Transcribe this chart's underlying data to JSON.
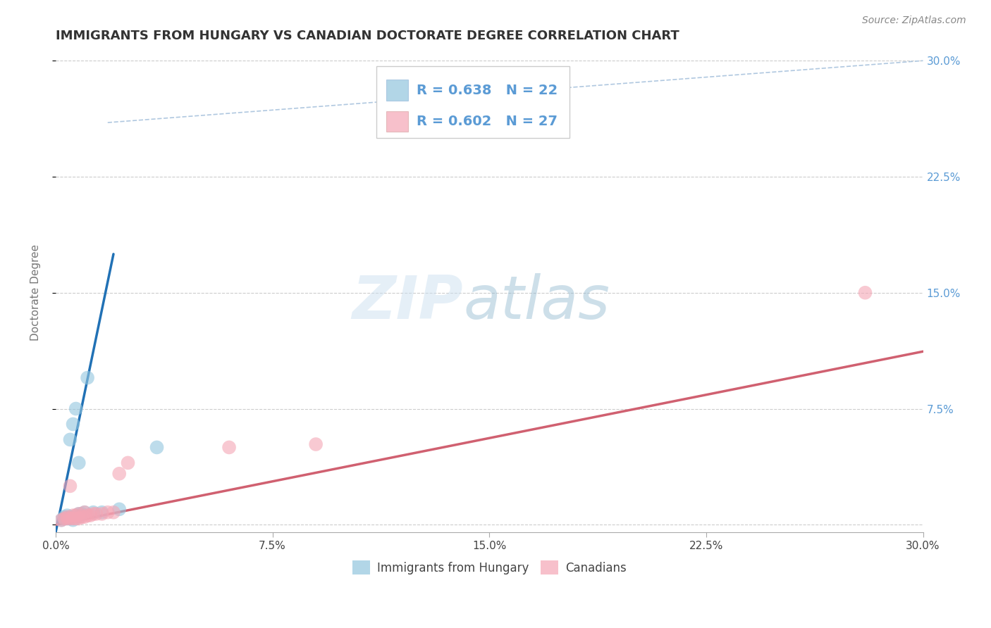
{
  "title": "IMMIGRANTS FROM HUNGARY VS CANADIAN DOCTORATE DEGREE CORRELATION CHART",
  "source": "Source: ZipAtlas.com",
  "ylabel": "Doctorate Degree",
  "xlim": [
    0.0,
    0.3
  ],
  "ylim": [
    -0.005,
    0.305
  ],
  "xticks": [
    0.0,
    0.075,
    0.15,
    0.225,
    0.3
  ],
  "yticks": [
    0.0,
    0.075,
    0.15,
    0.225,
    0.3
  ],
  "xticklabels": [
    "0.0%",
    "7.5%",
    "15.0%",
    "22.5%",
    "30.0%"
  ],
  "yticklabels": [
    "",
    "7.5%",
    "15.0%",
    "22.5%",
    "30.0%"
  ],
  "blue_scatter_x": [
    0.002,
    0.003,
    0.003,
    0.004,
    0.004,
    0.005,
    0.005,
    0.005,
    0.006,
    0.006,
    0.007,
    0.007,
    0.008,
    0.008,
    0.008,
    0.009,
    0.01,
    0.011,
    0.013,
    0.016,
    0.022,
    0.035
  ],
  "blue_scatter_y": [
    0.003,
    0.004,
    0.005,
    0.004,
    0.006,
    0.004,
    0.005,
    0.055,
    0.003,
    0.065,
    0.006,
    0.075,
    0.005,
    0.007,
    0.04,
    0.007,
    0.008,
    0.095,
    0.008,
    0.008,
    0.01,
    0.05
  ],
  "pink_scatter_x": [
    0.002,
    0.003,
    0.004,
    0.004,
    0.005,
    0.005,
    0.006,
    0.006,
    0.007,
    0.007,
    0.008,
    0.008,
    0.009,
    0.01,
    0.01,
    0.011,
    0.012,
    0.013,
    0.014,
    0.016,
    0.018,
    0.02,
    0.022,
    0.025,
    0.06,
    0.09,
    0.28
  ],
  "pink_scatter_y": [
    0.003,
    0.004,
    0.004,
    0.005,
    0.004,
    0.025,
    0.004,
    0.006,
    0.004,
    0.006,
    0.004,
    0.007,
    0.005,
    0.005,
    0.008,
    0.006,
    0.006,
    0.007,
    0.007,
    0.007,
    0.008,
    0.008,
    0.033,
    0.04,
    0.05,
    0.052,
    0.15
  ],
  "blue_line_x": [
    0.0,
    0.02
  ],
  "blue_line_y": [
    -0.005,
    0.175
  ],
  "pink_line_x": [
    0.0,
    0.3
  ],
  "pink_line_y": [
    0.0,
    0.112
  ],
  "diag_line_x": [
    0.018,
    0.3
  ],
  "diag_line_y": [
    0.26,
    0.3
  ],
  "blue_color": "#92c5de",
  "blue_line_color": "#2171b5",
  "pink_color": "#f4a6b5",
  "pink_line_color": "#d06070",
  "diag_color": "#b0c8e0",
  "watermark_zip": "ZIP",
  "watermark_atlas": "atlas",
  "legend_R1": "R = 0.638",
  "legend_N1": "N = 22",
  "legend_R2": "R = 0.602",
  "legend_N2": "N = 27",
  "legend_label1": "Immigrants from Hungary",
  "legend_label2": "Canadians",
  "background_color": "#ffffff",
  "grid_color": "#cccccc",
  "title_color": "#333333",
  "axis_label_color": "#777777",
  "tick_color_right": "#5b9bd5",
  "title_fontsize": 13,
  "source_fontsize": 10,
  "legend_fontsize": 14,
  "scatter_size": 200
}
